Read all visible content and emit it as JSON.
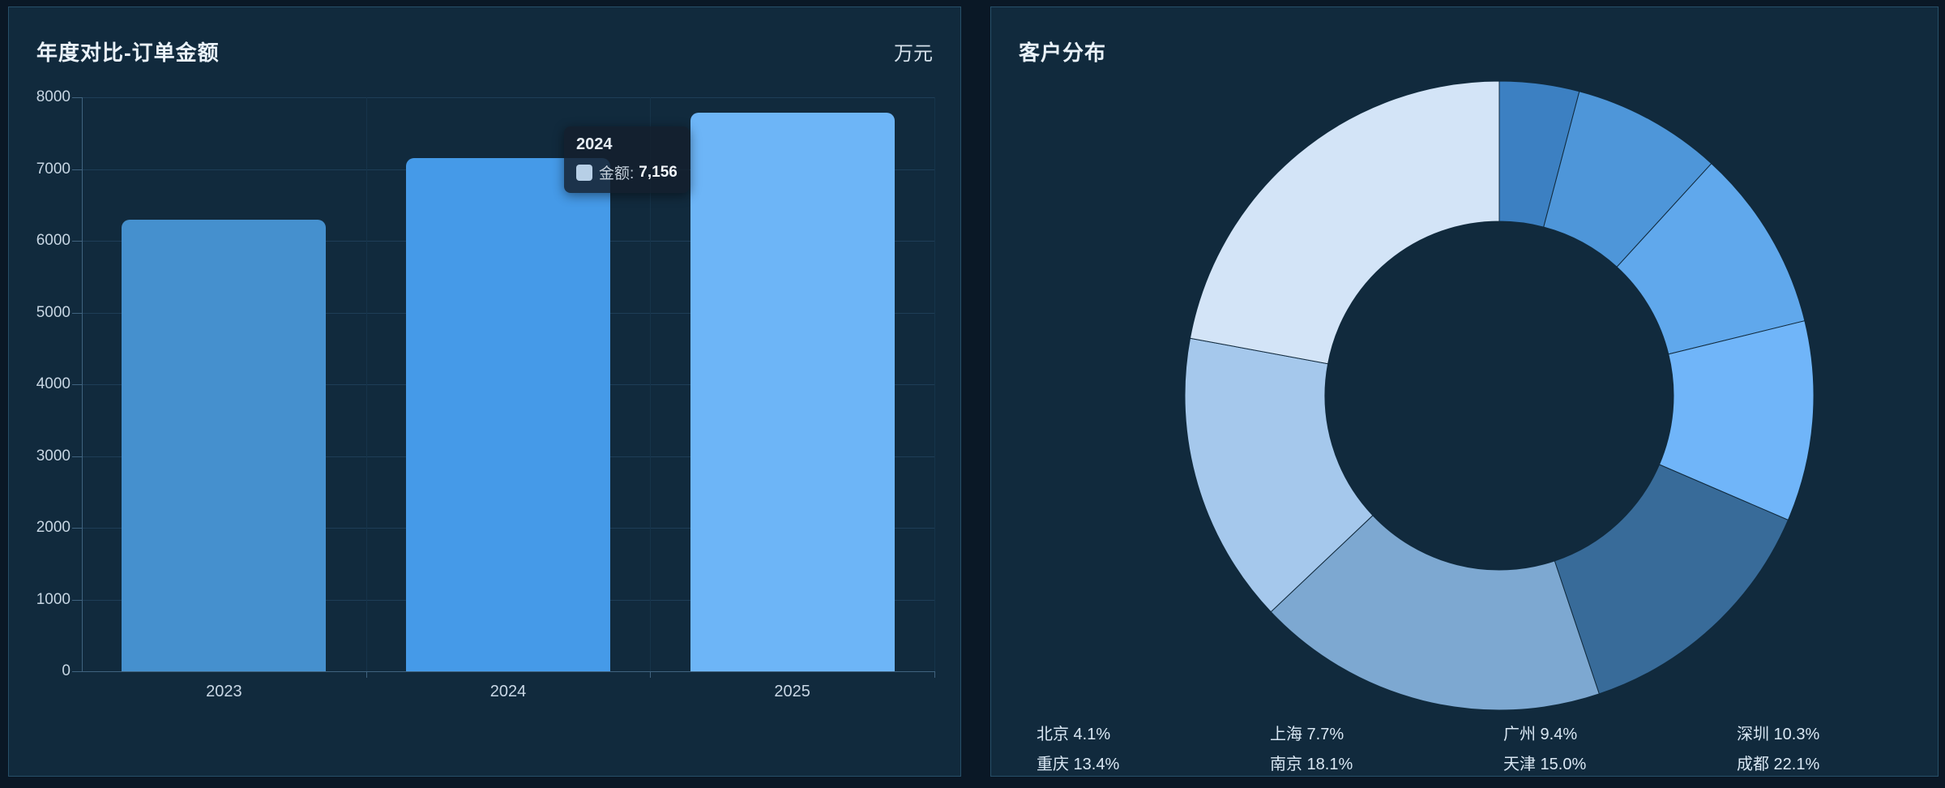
{
  "page": {
    "background": "#0a1826",
    "panel_background": "#112a3d",
    "panel_border": "#275069"
  },
  "left_panel": {
    "title": "年度对比-订单金额",
    "unit_label": "万元",
    "tooltip": {
      "title": "2024",
      "series_label_display": "金额:",
      "value_display": "7,156",
      "swatch_color": "#b7cfe6"
    }
  },
  "right_panel": {
    "title": "客户分布"
  },
  "chart_data": [
    {
      "type": "bar",
      "title": "年度对比-订单金额",
      "ylabel": "万元",
      "categories": [
        "2023",
        "2024",
        "2025"
      ],
      "values": [
        6300,
        7156,
        7790
      ],
      "bar_colors": [
        "#4590ce",
        "#459ae8",
        "#6db5f7"
      ],
      "ylim": [
        0,
        8000
      ],
      "ytick_interval": 1000,
      "grid": true,
      "legend_position": "none",
      "tooltip_shown_for": "2024"
    },
    {
      "type": "pie",
      "donut": true,
      "title": "客户分布",
      "labels": [
        "北京",
        "上海",
        "广州",
        "深圳",
        "重庆",
        "南京",
        "天津",
        "成都"
      ],
      "values": [
        4.1,
        7.7,
        9.4,
        10.3,
        13.4,
        18.1,
        15.0,
        22.1
      ],
      "pct_display": [
        "4.1%",
        "7.7%",
        "9.4%",
        "10.3%",
        "13.4%",
        "18.1%",
        "15.0%",
        "22.1%"
      ],
      "colors": [
        "#3c80c2",
        "#4e96d9",
        "#60a8ec",
        "#70b5f9",
        "#386b99",
        "#7da8d1",
        "#a5c8ec",
        "#d3e4f7"
      ],
      "start_angle": "top",
      "direction": "clockwise",
      "legend_position": "bottom"
    }
  ]
}
